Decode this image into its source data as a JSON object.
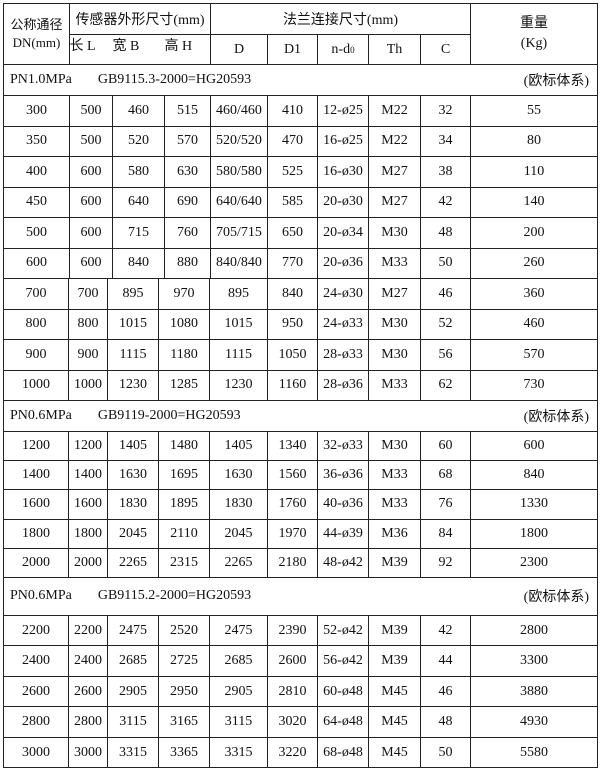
{
  "header": {
    "dn_label": "公称通径",
    "dn_unit": "DN(mm)",
    "sensor_group": "传感器外形尺寸(mm)",
    "flange_group": "法兰连接尺寸(mm)",
    "weight_label": "重量",
    "weight_unit": "(Kg)",
    "cols": [
      "长 L",
      "宽 B",
      "高 H",
      "D",
      "D1",
      "n-d",
      "Th",
      "C"
    ],
    "nd_sub": "0"
  },
  "sections": [
    {
      "pressure": "PN1.0MPa",
      "standard": "GB9115.3-2000=HG20593",
      "system": "(欧标体系)",
      "rows": [
        [
          "300",
          "500",
          "460",
          "515",
          "460/460",
          "410",
          "12-ø25",
          "M22",
          "32",
          "55"
        ],
        [
          "350",
          "500",
          "520",
          "570",
          "520/520",
          "470",
          "16-ø25",
          "M22",
          "34",
          "80"
        ],
        [
          "400",
          "600",
          "580",
          "630",
          "580/580",
          "525",
          "16-ø30",
          "M27",
          "38",
          "110"
        ],
        [
          "450",
          "600",
          "640",
          "690",
          "640/640",
          "585",
          "20-ø30",
          "M27",
          "42",
          "140"
        ],
        [
          "500",
          "600",
          "715",
          "760",
          "705/715",
          "650",
          "20-ø34",
          "M30",
          "48",
          "200"
        ],
        [
          "600",
          "600",
          "840",
          "880",
          "840/840",
          "770",
          "20-ø36",
          "M33",
          "50",
          "260"
        ]
      ],
      "rows_b": [
        [
          "700",
          "700",
          "895",
          "970",
          "895",
          "840",
          "24-ø30",
          "M27",
          "46",
          "360"
        ],
        [
          "800",
          "800",
          "1015",
          "1080",
          "1015",
          "950",
          "24-ø33",
          "M30",
          "52",
          "460"
        ],
        [
          "900",
          "900",
          "1115",
          "1180",
          "1115",
          "1050",
          "28-ø33",
          "M30",
          "56",
          "570"
        ],
        [
          "1000",
          "1000",
          "1230",
          "1285",
          "1230",
          "1160",
          "28-ø36",
          "M33",
          "62",
          "730"
        ]
      ]
    },
    {
      "pressure": "PN0.6MPa",
      "standard": "GB9119-2000=HG20593",
      "system": "(欧标体系)",
      "rows_b": [
        [
          "1200",
          "1200",
          "1405",
          "1480",
          "1405",
          "1340",
          "32-ø33",
          "M30",
          "60",
          "600"
        ],
        [
          "1400",
          "1400",
          "1630",
          "1695",
          "1630",
          "1560",
          "36-ø36",
          "M33",
          "68",
          "840"
        ],
        [
          "1600",
          "1600",
          "1830",
          "1895",
          "1830",
          "1760",
          "40-ø36",
          "M33",
          "76",
          "1330"
        ],
        [
          "1800",
          "1800",
          "2045",
          "2110",
          "2045",
          "1970",
          "44-ø39",
          "M36",
          "84",
          "1800"
        ],
        [
          "2000",
          "2000",
          "2265",
          "2315",
          "2265",
          "2180",
          "48-ø42",
          "M39",
          "92",
          "2300"
        ]
      ]
    },
    {
      "pressure": "PN0.6MPa",
      "standard": "GB9115.2-2000=HG20593",
      "system": "(欧标体系)",
      "rows_b": [
        [
          "2200",
          "2200",
          "2475",
          "2520",
          "2475",
          "2390",
          "52-ø42",
          "M39",
          "42",
          "2800"
        ],
        [
          "2400",
          "2400",
          "2685",
          "2725",
          "2685",
          "2600",
          "56-ø42",
          "M39",
          "44",
          "3300"
        ],
        [
          "2600",
          "2600",
          "2905",
          "2950",
          "2905",
          "2810",
          "60-ø48",
          "M45",
          "46",
          "3880"
        ],
        [
          "2800",
          "2800",
          "3115",
          "3165",
          "3115",
          "3020",
          "64-ø48",
          "M45",
          "48",
          "4930"
        ],
        [
          "3000",
          "3000",
          "3315",
          "3365",
          "3315",
          "3220",
          "68-ø48",
          "M45",
          "50",
          "5580"
        ]
      ]
    }
  ]
}
